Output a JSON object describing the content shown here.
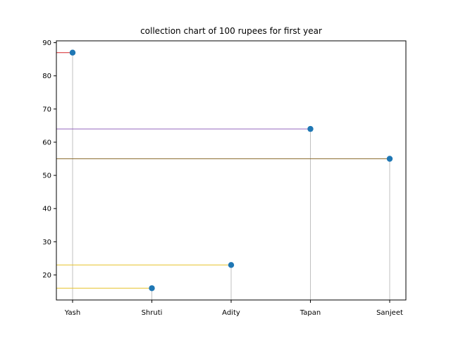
{
  "chart_data": {
    "type": "scatter",
    "title": "collection chart of 100 rupees for first year",
    "xlabel": "",
    "ylabel": "",
    "categories": [
      "Yash",
      "Shruti",
      "Adity",
      "Tapan",
      "Sanjeet"
    ],
    "values": [
      87,
      16,
      23,
      64,
      55
    ],
    "ylim": [
      12.45,
      90.55
    ],
    "yticks": [
      20,
      30,
      40,
      50,
      60,
      70,
      80,
      90
    ],
    "ytick_labels": [
      "20",
      "30",
      "40",
      "50",
      "60",
      "70",
      "80",
      "90"
    ],
    "grid": false,
    "legend": "none",
    "point_color": "#1f77b4",
    "stem_color": "#c0c0c0",
    "hline_colors": [
      "#d62728",
      "#e6c229",
      "#e6c229",
      "#9467bd",
      "#8c6d31"
    ]
  }
}
